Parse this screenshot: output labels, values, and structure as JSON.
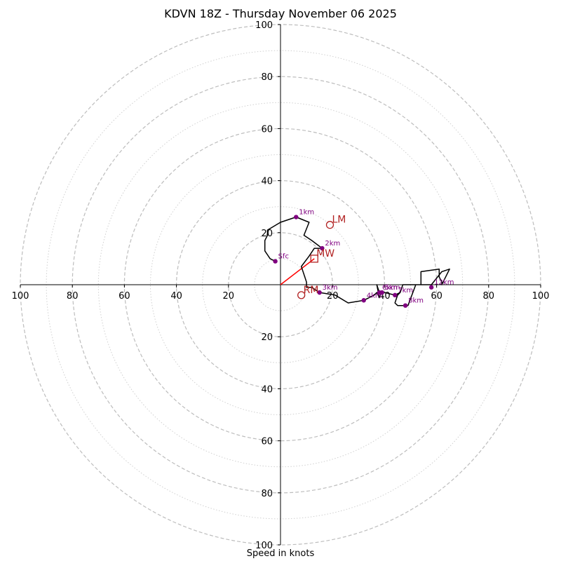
{
  "chart_data": {
    "type": "hodograph",
    "title": "KDVN 18Z - Thursday November 06 2025",
    "xlabel": "Speed in knots",
    "max_speed": 100,
    "ring_step": 10,
    "major_ring_step": 20,
    "x_tick_labels": [
      "100",
      "80",
      "60",
      "40",
      "20",
      "20",
      "40",
      "60",
      "80",
      "100"
    ],
    "x_tick_values": [
      -100,
      -80,
      -60,
      -40,
      -20,
      20,
      40,
      60,
      80,
      100
    ],
    "y_tick_labels": [
      "100",
      "80",
      "60",
      "40",
      "20",
      "20",
      "40",
      "60",
      "80",
      "100"
    ],
    "y_tick_values": [
      100,
      80,
      60,
      40,
      20,
      -20,
      -40,
      -60,
      -80,
      -100
    ],
    "trace": [
      [
        -2,
        9
      ],
      [
        -4,
        10
      ],
      [
        -6,
        13
      ],
      [
        -6,
        17
      ],
      [
        -5,
        19
      ],
      [
        -5,
        21
      ],
      [
        0,
        24
      ],
      [
        6,
        26
      ],
      [
        11,
        24
      ],
      [
        9,
        19
      ],
      [
        12,
        17
      ],
      [
        16,
        14
      ],
      [
        15,
        14
      ],
      [
        13,
        14
      ],
      [
        11,
        11
      ],
      [
        8,
        7
      ],
      [
        10,
        1
      ],
      [
        10,
        -1
      ],
      [
        12,
        -1
      ],
      [
        15,
        -3
      ],
      [
        21,
        -4
      ],
      [
        26,
        -7
      ],
      [
        32,
        -6
      ],
      [
        36,
        -4
      ],
      [
        37,
        -3
      ],
      [
        38,
        -5
      ],
      [
        37,
        0
      ],
      [
        38,
        -3
      ],
      [
        39,
        -3
      ],
      [
        40,
        -3
      ],
      [
        44,
        -4
      ],
      [
        46,
        -3
      ],
      [
        47,
        0
      ],
      [
        54,
        0
      ],
      [
        54,
        5
      ],
      [
        61,
        6
      ],
      [
        61,
        3
      ],
      [
        62,
        1
      ],
      [
        62,
        0
      ],
      [
        63,
        2
      ],
      [
        65,
        6
      ],
      [
        62,
        5
      ],
      [
        58,
        0
      ],
      [
        52,
        0
      ],
      [
        49,
        -8
      ],
      [
        45,
        -8
      ],
      [
        44,
        -7
      ],
      [
        45,
        -4
      ],
      [
        46,
        -3
      ]
    ],
    "height_points": [
      {
        "label": "Sfc",
        "u": -2,
        "v": 9
      },
      {
        "label": "1km",
        "u": 6,
        "v": 26
      },
      {
        "label": "2km",
        "u": 16,
        "v": 14
      },
      {
        "label": "3km",
        "u": 15,
        "v": -3
      },
      {
        "label": "4km",
        "u": 32,
        "v": -6
      },
      {
        "label": "5km",
        "u": 39,
        "v": -3
      },
      {
        "label": "6km",
        "u": 38,
        "v": -3
      },
      {
        "label": "7km",
        "u": 44,
        "v": -4
      },
      {
        "label": "8km",
        "u": 48,
        "v": -8
      },
      {
        "label": "12km",
        "u": 58,
        "v": -1
      }
    ],
    "storm_motion": [
      {
        "label": "LM",
        "u": 19,
        "v": 23,
        "marker": "circle"
      },
      {
        "label": "MW",
        "u": 13,
        "v": 10,
        "marker": "square"
      },
      {
        "label": "RM",
        "u": 8,
        "v": -4,
        "marker": "circle"
      }
    ],
    "shear_vector": {
      "from": [
        0,
        0
      ],
      "to": [
        13,
        10
      ]
    }
  }
}
